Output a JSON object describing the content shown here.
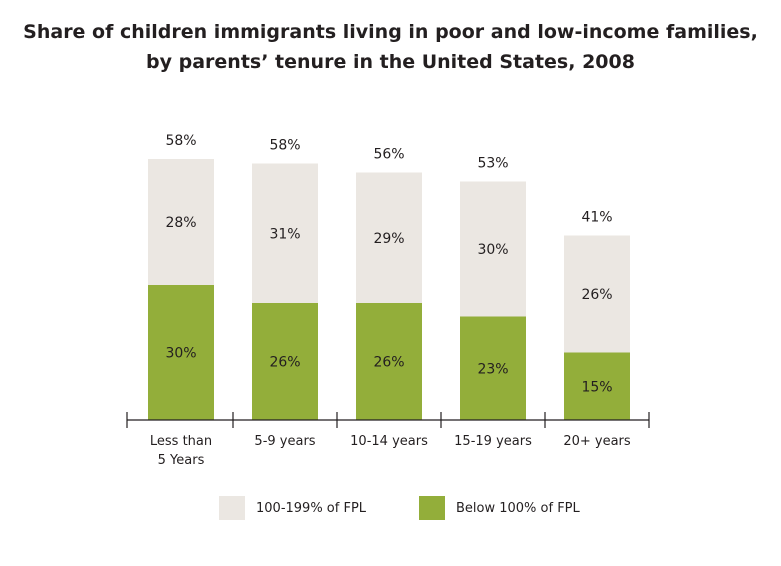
{
  "title_line1": "Share of children immigrants living in poor and low-income families,",
  "title_line2": "by parents’ tenure in the United States, 2008",
  "colors": {
    "low_income": "#ebe7e2",
    "poor": "#93ae3a",
    "axis": "#231f20"
  },
  "legend": [
    {
      "label": "100-199% of FPL",
      "color": "#ebe7e2"
    },
    {
      "label": "Below 100% of FPL",
      "color": "#93ae3a"
    }
  ],
  "chart_data": {
    "type": "bar",
    "stacked": true,
    "categories": [
      [
        "Less than",
        "5 Years"
      ],
      [
        "5-9 years"
      ],
      [
        "10-14 years"
      ],
      [
        "15-19 years"
      ],
      [
        "20+ years"
      ]
    ],
    "series": [
      {
        "name": "Below 100% of FPL",
        "values": [
          30,
          26,
          26,
          23,
          15
        ],
        "labels": [
          "30%",
          "26%",
          "26%",
          "23%",
          "15%"
        ]
      },
      {
        "name": "100-199% of FPL",
        "values": [
          28,
          31,
          29,
          30,
          26
        ],
        "labels": [
          "28%",
          "31%",
          "29%",
          "30%",
          "26%"
        ]
      }
    ],
    "totals": [
      58,
      58,
      56,
      53,
      41
    ],
    "total_labels": [
      "58%",
      "58%",
      "56%",
      "53%",
      "41%"
    ],
    "title": "Share of children immigrants living in poor and low-income families, by parents’ tenure in the United States, 2008",
    "xlabel": "",
    "ylabel": "",
    "ylim": [
      0,
      60
    ],
    "grid": false,
    "legend_position": "bottom"
  }
}
